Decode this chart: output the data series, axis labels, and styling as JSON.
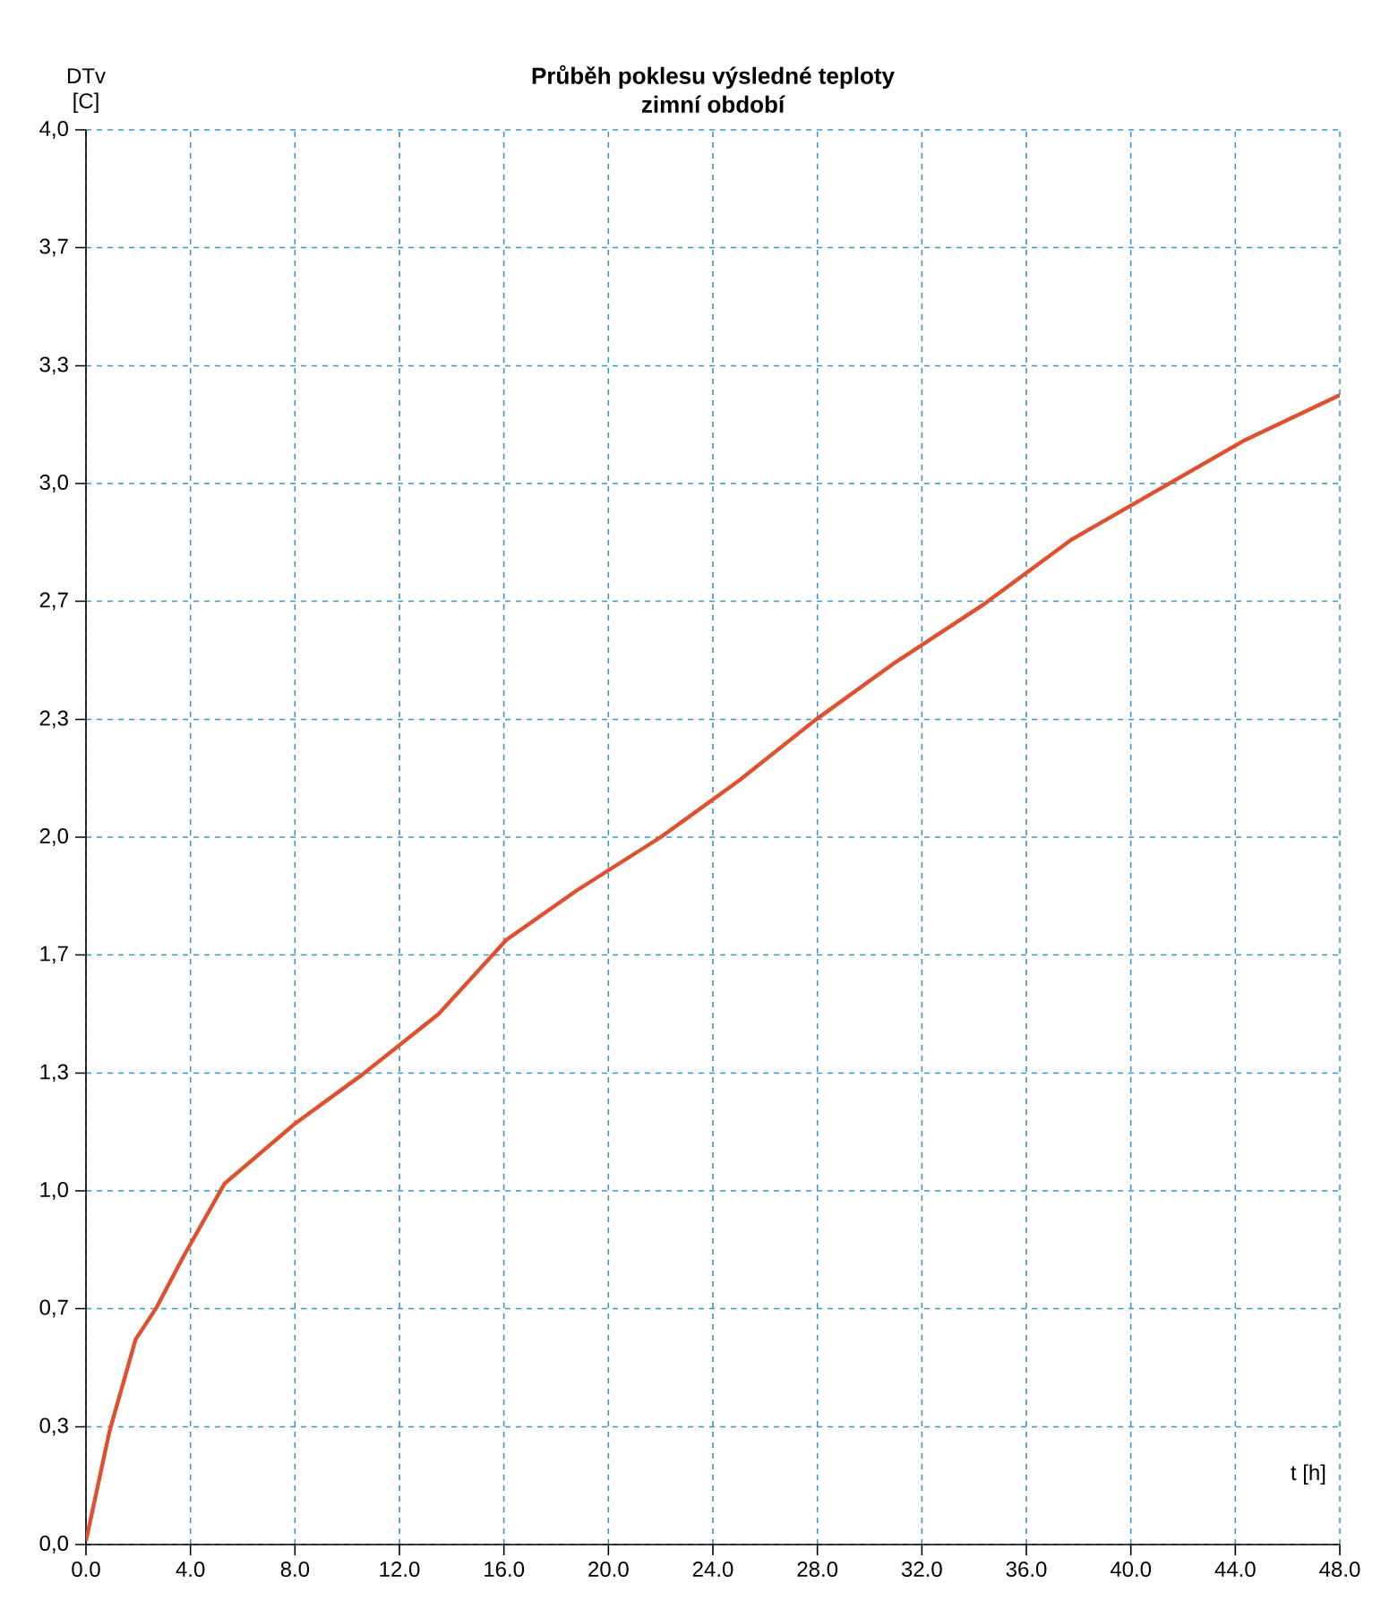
{
  "chart_data": {
    "type": "line",
    "title": "Průběh poklesu výsledné teploty",
    "subtitle": "zimní období",
    "xlabel": "t [h]",
    "ylabel": "DTv [C]",
    "x": [
      0,
      0.9,
      1.9,
      2.7,
      3.7,
      5.3,
      8,
      10.6,
      13.5,
      16.1,
      18.8,
      22,
      25,
      27.9,
      30.9,
      34.4,
      37.7,
      41,
      44.3,
      48
    ],
    "series": [
      {
        "color": "#e0502e",
        "values": [
          0.01,
          0.32,
          0.58,
          0.67,
          0.81,
          1.02,
          1.19,
          1.33,
          1.5,
          1.71,
          1.85,
          2.0,
          2.16,
          2.33,
          2.49,
          2.66,
          2.84,
          2.98,
          3.12,
          3.25
        ]
      }
    ],
    "xlim": [
      0,
      48
    ],
    "xticks": [
      {
        "value": 0,
        "label": "0.0"
      },
      {
        "value": 4,
        "label": "4.0"
      },
      {
        "value": 8,
        "label": "8.0"
      },
      {
        "value": 12,
        "label": "12.0"
      },
      {
        "value": 16,
        "label": "16.0"
      },
      {
        "value": 20,
        "label": "20.0"
      },
      {
        "value": 24,
        "label": "24.0"
      },
      {
        "value": 28,
        "label": "28.0"
      },
      {
        "value": 32,
        "label": "32.0"
      },
      {
        "value": 36,
        "label": "36.0"
      },
      {
        "value": 40,
        "label": "40.0"
      },
      {
        "value": 44,
        "label": "44.0"
      },
      {
        "value": 48,
        "label": "48.0"
      }
    ],
    "ylim": [
      0,
      4
    ],
    "yticks": [
      {
        "value": 0,
        "label": "0,0"
      },
      {
        "value": 0.333,
        "label": "0,3"
      },
      {
        "value": 0.667,
        "label": "0,7"
      },
      {
        "value": 1,
        "label": "1,0"
      },
      {
        "value": 1.333,
        "label": "1,3"
      },
      {
        "value": 1.667,
        "label": "1,7"
      },
      {
        "value": 2,
        "label": "2,0"
      },
      {
        "value": 2.333,
        "label": "2,3"
      },
      {
        "value": 2.667,
        "label": "2,7"
      },
      {
        "value": 3,
        "label": "3,0"
      },
      {
        "value": 3.333,
        "label": "3,3"
      },
      {
        "value": 3.667,
        "label": "3,7"
      },
      {
        "value": 4,
        "label": "4,0"
      }
    ],
    "grid": true,
    "marker": "none",
    "line_style": "solid"
  }
}
